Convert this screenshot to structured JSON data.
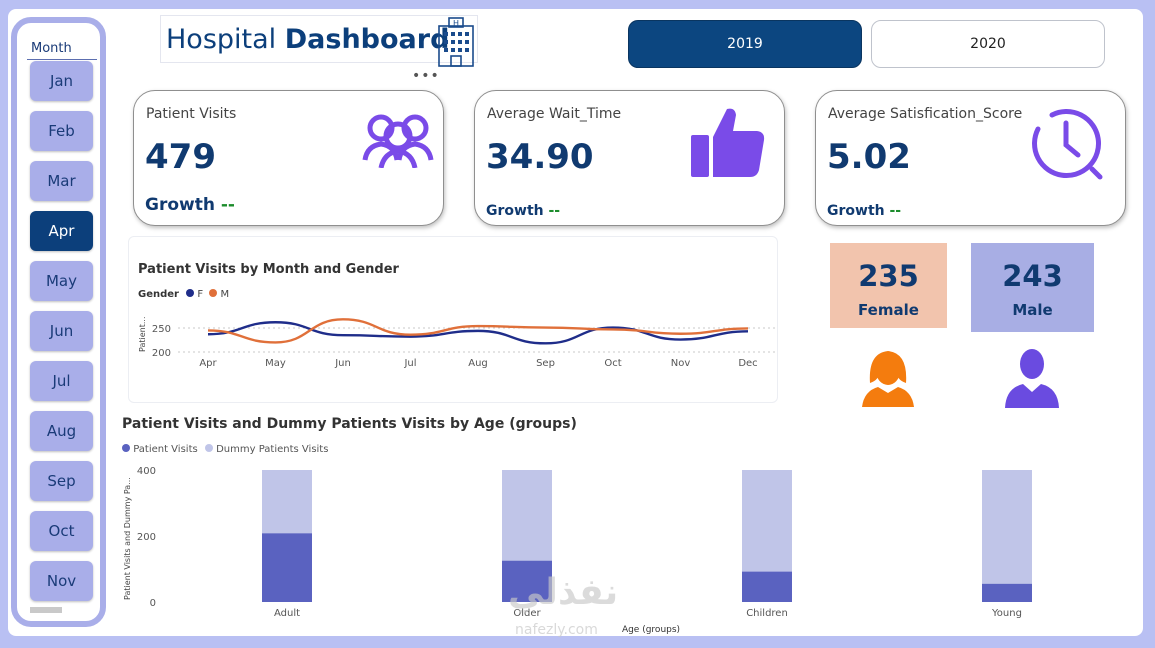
{
  "slicer": {
    "title": "Month",
    "months": [
      "Jan",
      "Feb",
      "Mar",
      "Apr",
      "May",
      "Jun",
      "Jul",
      "Aug",
      "Sep",
      "Oct",
      "Nov"
    ],
    "selected": "Apr"
  },
  "header": {
    "title_light": "Hospital ",
    "title_bold": "Dashboard",
    "more_label": "•••"
  },
  "years": {
    "y2019": "2019",
    "y2020": "2020",
    "selected": "2019"
  },
  "cards": {
    "visits": {
      "label": "Patient Visits",
      "value": "479",
      "growth_label": "Growth ",
      "growth_value": "--",
      "icon": "users-icon"
    },
    "wait": {
      "label": "Average Wait_Time",
      "value": "34.90",
      "growth_label": "Growth ",
      "growth_value": "--",
      "icon": "thumbs-up-icon"
    },
    "satisfaction": {
      "label": "Average Satisfication_Score",
      "value": "5.02",
      "growth_label": "Growth ",
      "growth_value": "--",
      "icon": "clock-icon"
    }
  },
  "gender": {
    "female": {
      "count": "235",
      "label": "Female",
      "color": "#f2c4ad",
      "icon": "female-user-icon",
      "icon_color": "#f47c0e"
    },
    "male": {
      "count": "243",
      "label": "Male",
      "color": "#a8aee4",
      "icon": "male-user-icon",
      "icon_color": "#6a4be0"
    }
  },
  "line_chart": {
    "title": "Patient Visits by Month and Gender",
    "legend_title": "Gender",
    "legend": [
      "F",
      "M"
    ],
    "ylabel": "Patient...",
    "yticks": [
      "250",
      "200"
    ]
  },
  "bar_chart": {
    "title": "Patient Visits and Dummy Patients Visits by Age (groups)",
    "legend": [
      "Patient Visits",
      "Dummy Patients Visits"
    ],
    "ylabel": "Patient Visits and Dummy Pa...",
    "xlabel": "Age (groups)",
    "yticks": [
      "400",
      "200",
      "0"
    ]
  },
  "watermark": {
    "main": "نفذلي",
    "sub": "nafezly.com"
  },
  "colors": {
    "navy": "#103a70",
    "accent": "#0c4680",
    "f_line": "#1f2d8a",
    "m_line": "#e0703a",
    "bar_dark": "#5a62c0",
    "bar_light": "#c0c5e8",
    "icon_purple": "#7a4be8"
  },
  "chart_data": [
    {
      "type": "line",
      "title": "Patient Visits by Month and Gender",
      "x": [
        "Apr",
        "May",
        "Jun",
        "Jul",
        "Aug",
        "Sep",
        "Oct",
        "Nov",
        "Dec"
      ],
      "series": [
        {
          "name": "F",
          "values": [
            237,
            262,
            235,
            232,
            244,
            218,
            251,
            226,
            243
          ]
        },
        {
          "name": "M",
          "values": [
            245,
            220,
            268,
            236,
            254,
            251,
            247,
            238,
            249
          ]
        }
      ],
      "xlabel": "",
      "ylabel": "Patient...",
      "ylim": [
        200,
        260
      ],
      "grid": true
    },
    {
      "type": "bar",
      "title": "Patient Visits and Dummy Patients Visits by Age (groups)",
      "categories": [
        "Adult",
        "Older",
        "Children",
        "Young"
      ],
      "series": [
        {
          "name": "Patient Visits",
          "values": [
            208,
            125,
            92,
            55
          ]
        },
        {
          "name": "Dummy Patients Visits",
          "values": [
            400,
            400,
            400,
            400
          ]
        }
      ],
      "xlabel": "Age (groups)",
      "ylabel": "Patient Visits and Dummy Pa...",
      "ylim": [
        0,
        400
      ],
      "legend": "top-left"
    }
  ]
}
